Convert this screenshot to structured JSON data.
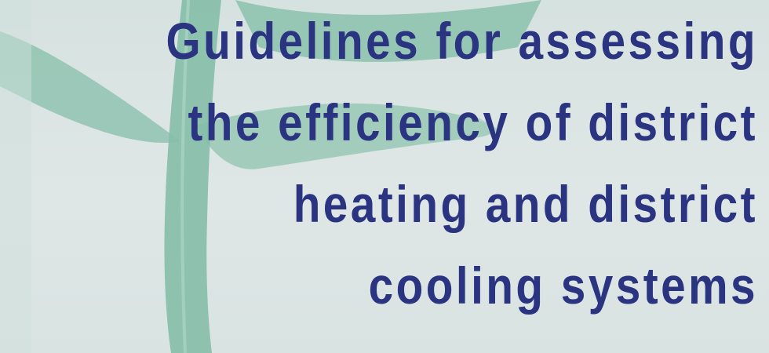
{
  "cover": {
    "title_lines": [
      "Guidelines for assessing",
      "the efficiency of district",
      "heating and district",
      "cooling systems"
    ]
  }
}
